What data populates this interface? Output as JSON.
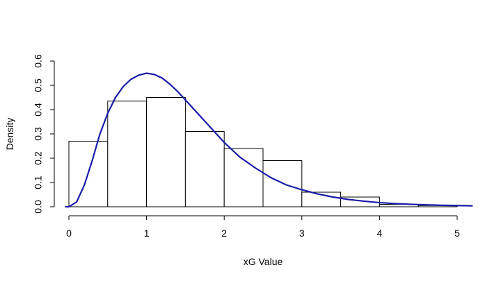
{
  "chart_data": {
    "type": "bar",
    "title": "",
    "xlabel": "xG Value",
    "ylabel": "Density",
    "xlim": [
      -0.1,
      5.2
    ],
    "ylim": [
      0,
      0.6
    ],
    "x_ticks": [
      0,
      1,
      2,
      3,
      4,
      5
    ],
    "x_tick_labels": [
      "0",
      "1",
      "2",
      "3",
      "4",
      "5"
    ],
    "y_ticks": [
      0,
      0.1,
      0.2,
      0.3,
      0.4,
      0.5,
      0.6
    ],
    "y_tick_labels": [
      "0.0",
      "0.1",
      "0.2",
      "0.3",
      "0.4",
      "0.5",
      "0.6"
    ],
    "grid": false,
    "bins": [
      {
        "start": 0.0,
        "end": 0.5,
        "density": 0.27
      },
      {
        "start": 0.5,
        "end": 1.0,
        "density": 0.435
      },
      {
        "start": 1.0,
        "end": 1.5,
        "density": 0.45
      },
      {
        "start": 1.5,
        "end": 2.0,
        "density": 0.31
      },
      {
        "start": 2.0,
        "end": 2.5,
        "density": 0.24
      },
      {
        "start": 2.5,
        "end": 3.0,
        "density": 0.19
      },
      {
        "start": 3.0,
        "end": 3.5,
        "density": 0.06
      },
      {
        "start": 3.5,
        "end": 4.0,
        "density": 0.04
      },
      {
        "start": 4.0,
        "end": 4.5,
        "density": 0.01
      },
      {
        "start": 4.5,
        "end": 5.0,
        "density": 0.005
      }
    ],
    "curve": {
      "color": "#1a1aaa",
      "x": [
        -0.05,
        0.0,
        0.1,
        0.2,
        0.3,
        0.4,
        0.5,
        0.6,
        0.7,
        0.8,
        0.9,
        1.0,
        1.1,
        1.2,
        1.3,
        1.4,
        1.5,
        1.6,
        1.7,
        1.8,
        1.9,
        2.0,
        2.2,
        2.4,
        2.6,
        2.8,
        3.0,
        3.2,
        3.4,
        3.6,
        3.8,
        4.0,
        4.2,
        4.4,
        4.6,
        4.8,
        5.0,
        5.2
      ],
      "y": [
        0.0,
        0.0,
        0.02,
        0.09,
        0.19,
        0.3,
        0.385,
        0.45,
        0.495,
        0.525,
        0.542,
        0.55,
        0.545,
        0.53,
        0.505,
        0.475,
        0.44,
        0.405,
        0.37,
        0.335,
        0.3,
        0.265,
        0.205,
        0.16,
        0.12,
        0.09,
        0.07,
        0.053,
        0.04,
        0.03,
        0.023,
        0.017,
        0.013,
        0.01,
        0.008,
        0.006,
        0.005,
        0.004
      ]
    }
  }
}
